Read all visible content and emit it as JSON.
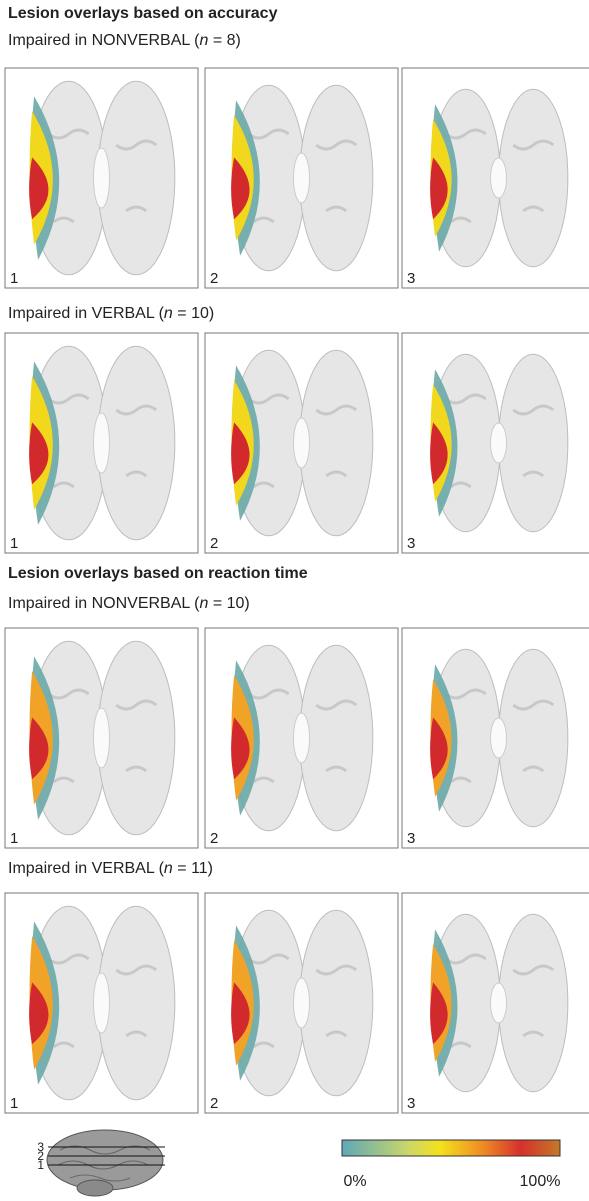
{
  "sections": [
    {
      "title": "Lesion overlays based on accuracy",
      "groups": [
        {
          "subtitle": [
            "Impaired in NONVERBAL (",
            "n",
            " = 8)"
          ],
          "panels": [
            "1",
            "2",
            "3"
          ]
        },
        {
          "subtitle": [
            "Impaired in VERBAL (",
            "n",
            " = 10)"
          ],
          "panels": [
            "1",
            "2",
            "3"
          ]
        }
      ]
    },
    {
      "title": "Lesion overlays based on reaction time",
      "groups": [
        {
          "subtitle": [
            "Impaired in NONVERBAL (",
            "n",
            " = 10)"
          ],
          "panels": [
            "1",
            "2",
            "3"
          ]
        },
        {
          "subtitle": [
            "Impaired in VERBAL (",
            "n",
            " = 11)"
          ],
          "panels": [
            "1",
            "2",
            "3"
          ]
        }
      ]
    }
  ],
  "legend": {
    "slice_labels": [
      "3",
      "2",
      "1"
    ],
    "colorbar_labels": [
      "0%",
      "100%"
    ]
  }
}
